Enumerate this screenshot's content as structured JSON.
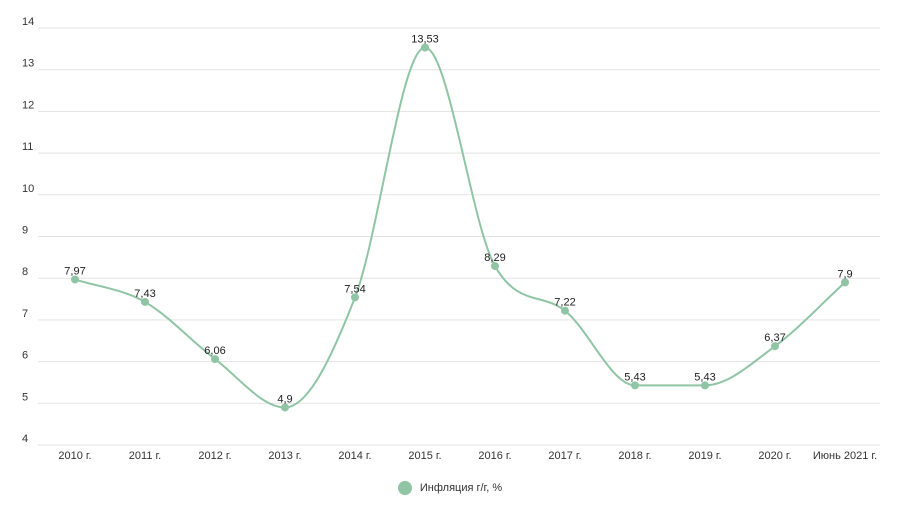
{
  "chart_data": {
    "type": "line",
    "categories": [
      "2010 г.",
      "2011 г.",
      "2012 г.",
      "2013 г.",
      "2014 г.",
      "2015 г.",
      "2016 г.",
      "2017 г.",
      "2018 г.",
      "2019 г.",
      "2020 г.",
      "Июнь 2021 г."
    ],
    "series": [
      {
        "name": "Инфляция г/г, %",
        "values": [
          7.97,
          7.43,
          6.06,
          4.9,
          7.54,
          13.53,
          8.29,
          7.22,
          5.43,
          5.43,
          6.37,
          7.9
        ],
        "labels": [
          "7,97",
          "7,43",
          "6,06",
          "4,9",
          "7,54",
          "13,53",
          "8,29",
          "7,22",
          "5,43",
          "5,43",
          "6,37",
          "7,9"
        ],
        "color": "#8fc5a4"
      }
    ],
    "yticks": [
      4,
      5,
      6,
      7,
      8,
      9,
      10,
      11,
      12,
      13,
      14
    ],
    "ylim": [
      4,
      14
    ],
    "grid": true,
    "legend": "bottom-center",
    "title": "",
    "xlabel": "",
    "ylabel": ""
  }
}
